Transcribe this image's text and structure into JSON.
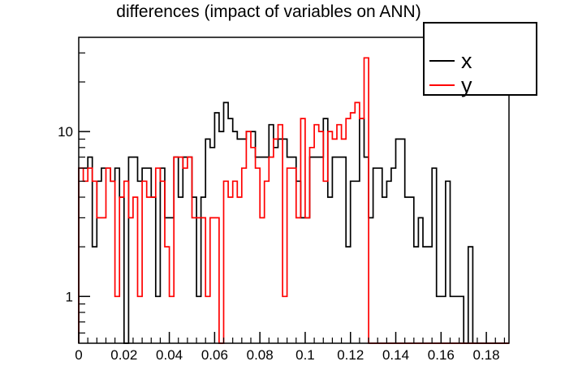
{
  "chart_data": {
    "type": "histogram-step",
    "title": "differences (impact of variables on ANN)",
    "x_start": 0,
    "bin_width": 0.002,
    "n_bins": 95,
    "xlim": [
      0,
      0.19
    ],
    "ylim": [
      0.52,
      37.3
    ],
    "y_scale": "log",
    "grid": false,
    "legend_position": "top-right",
    "x_major_ticks": [
      {
        "value": 0.0,
        "label": "0"
      },
      {
        "value": 0.02,
        "label": "0.02"
      },
      {
        "value": 0.04,
        "label": "0.04"
      },
      {
        "value": 0.06,
        "label": "0.06"
      },
      {
        "value": 0.08,
        "label": "0.08"
      },
      {
        "value": 0.1,
        "label": "0.1"
      },
      {
        "value": 0.12,
        "label": "0.12"
      },
      {
        "value": 0.14,
        "label": "0.14"
      },
      {
        "value": 0.16,
        "label": "0.16"
      },
      {
        "value": 0.18,
        "label": "0.18"
      }
    ],
    "x_minor_step": 0.004,
    "y_major_ticks": [
      {
        "value": 1,
        "label": "1"
      },
      {
        "value": 10,
        "label": "10"
      }
    ],
    "y_minor_ticks": [
      0.6,
      0.7,
      0.8,
      0.9,
      2,
      3,
      4,
      5,
      6,
      7,
      8,
      9,
      20,
      30
    ],
    "series": [
      {
        "name": "x",
        "color": "#000000",
        "values": [
          6,
          6,
          7,
          2,
          5,
          6,
          6,
          5,
          6,
          4,
          0,
          7,
          7,
          5,
          6,
          6,
          4,
          1,
          6,
          3,
          3,
          7,
          4,
          7,
          7,
          4,
          1,
          4,
          9,
          8,
          13,
          10,
          15,
          12,
          10,
          9,
          9,
          10,
          10,
          7,
          7,
          7,
          11,
          8,
          9,
          9,
          7,
          7,
          5,
          3,
          3,
          7,
          7,
          7,
          12,
          4,
          7,
          7,
          7,
          2,
          5,
          5,
          12,
          7,
          3,
          6,
          6,
          4,
          5,
          6,
          9,
          9,
          4,
          4,
          2,
          3,
          2,
          2,
          6,
          1,
          1,
          5,
          1,
          1,
          1,
          0,
          2,
          0,
          0,
          0,
          0,
          0,
          0,
          0,
          0
        ]
      },
      {
        "name": "y",
        "color": "#ff0000",
        "values": [
          6,
          5,
          6,
          5,
          3,
          3,
          6,
          5,
          1,
          4,
          5,
          3,
          4,
          1,
          5,
          4,
          4,
          6,
          5,
          2,
          1,
          7,
          7,
          6,
          7,
          3,
          3,
          3,
          1,
          3,
          3,
          0,
          5,
          4,
          5,
          4,
          6,
          10,
          8,
          6,
          3,
          5,
          7,
          9,
          11,
          1,
          6,
          6,
          3,
          12,
          3,
          8,
          11,
          10,
          5,
          10,
          9,
          11,
          9,
          12,
          13,
          15,
          12,
          28,
          0,
          0,
          0,
          0,
          0,
          0,
          0,
          0,
          0,
          0,
          0,
          0,
          0,
          0,
          0,
          0,
          0,
          0,
          0,
          0,
          0,
          0,
          0,
          0,
          0,
          0,
          0,
          0,
          0,
          0,
          0
        ]
      }
    ]
  }
}
